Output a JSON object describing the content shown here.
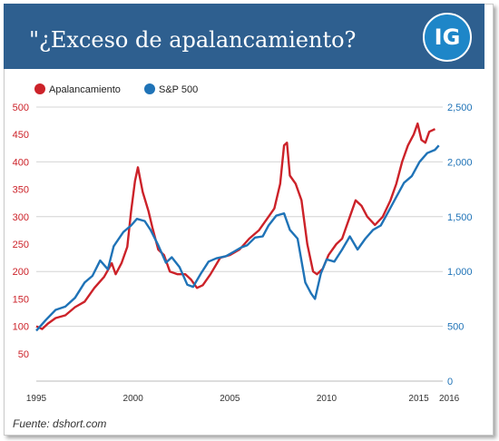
{
  "header": {
    "title": "\"¿Exceso de apalancamiento?",
    "logo_text": "IG"
  },
  "source": "Fuente: dshort.com",
  "colors": {
    "header_bg": "#2e5f8f",
    "logo_bg": "#1e86c8",
    "red_series": "#cc2229",
    "blue_series": "#1f73b7"
  },
  "chart_data": {
    "type": "line",
    "title": "\"¿Exceso de apalancamiento?",
    "legend_position": "top-left",
    "grid": true,
    "x_ticks": [
      "1995",
      "2000",
      "2005",
      "2010",
      "2015",
      "2016"
    ],
    "x_tick_values": [
      1995,
      2000,
      2005,
      2010,
      2015,
      2016
    ],
    "xlim": [
      1995,
      2016
    ],
    "y_left": {
      "ticks": [
        "50",
        "100",
        "150",
        "200",
        "250",
        "300",
        "350",
        "400",
        "450",
        "500"
      ],
      "tick_values": [
        50,
        100,
        150,
        200,
        250,
        300,
        350,
        400,
        450,
        500
      ],
      "lim": [
        0,
        500
      ]
    },
    "y_right": {
      "ticks": [
        "0",
        "500",
        "1,000",
        "1,500",
        "2,000",
        "2,500"
      ],
      "tick_values": [
        0,
        500,
        1000,
        1500,
        2000,
        2500
      ],
      "lim": [
        0,
        2500
      ]
    },
    "series": [
      {
        "name": "Apalancamiento",
        "axis": "left",
        "color": "#cc2229",
        "points": [
          [
            1995.0,
            100
          ],
          [
            1995.3,
            95
          ],
          [
            1995.6,
            105
          ],
          [
            1996.0,
            115
          ],
          [
            1996.5,
            120
          ],
          [
            1997.0,
            135
          ],
          [
            1997.5,
            145
          ],
          [
            1998.0,
            170
          ],
          [
            1998.5,
            190
          ],
          [
            1998.9,
            215
          ],
          [
            1999.1,
            195
          ],
          [
            1999.4,
            215
          ],
          [
            1999.7,
            245
          ],
          [
            1999.9,
            310
          ],
          [
            2000.1,
            365
          ],
          [
            2000.25,
            390
          ],
          [
            2000.5,
            345
          ],
          [
            2000.8,
            310
          ],
          [
            2001.0,
            280
          ],
          [
            2001.3,
            240
          ],
          [
            2001.6,
            230
          ],
          [
            2001.9,
            200
          ],
          [
            2002.3,
            195
          ],
          [
            2002.7,
            195
          ],
          [
            2003.0,
            185
          ],
          [
            2003.3,
            170
          ],
          [
            2003.6,
            175
          ],
          [
            2004.0,
            195
          ],
          [
            2004.5,
            225
          ],
          [
            2005.0,
            230
          ],
          [
            2005.5,
            240
          ],
          [
            2006.0,
            260
          ],
          [
            2006.5,
            275
          ],
          [
            2007.0,
            300
          ],
          [
            2007.3,
            315
          ],
          [
            2007.6,
            360
          ],
          [
            2007.8,
            430
          ],
          [
            2007.95,
            435
          ],
          [
            2008.1,
            375
          ],
          [
            2008.4,
            360
          ],
          [
            2008.7,
            330
          ],
          [
            2009.0,
            250
          ],
          [
            2009.3,
            200
          ],
          [
            2009.5,
            195
          ],
          [
            2009.8,
            205
          ],
          [
            2010.1,
            230
          ],
          [
            2010.5,
            250
          ],
          [
            2010.8,
            260
          ],
          [
            2011.2,
            300
          ],
          [
            2011.5,
            330
          ],
          [
            2011.8,
            320
          ],
          [
            2012.1,
            300
          ],
          [
            2012.5,
            285
          ],
          [
            2012.9,
            300
          ],
          [
            2013.3,
            330
          ],
          [
            2013.6,
            360
          ],
          [
            2013.9,
            400
          ],
          [
            2014.2,
            430
          ],
          [
            2014.5,
            450
          ],
          [
            2014.7,
            470
          ],
          [
            2014.9,
            440
          ],
          [
            2015.1,
            435
          ],
          [
            2015.3,
            455
          ],
          [
            2015.6,
            460
          ]
        ]
      },
      {
        "name": "S&P 500",
        "axis": "right",
        "color": "#1f73b7",
        "points": [
          [
            1995.0,
            460
          ],
          [
            1995.5,
            560
          ],
          [
            1996.0,
            650
          ],
          [
            1996.5,
            680
          ],
          [
            1997.0,
            760
          ],
          [
            1997.5,
            900
          ],
          [
            1997.9,
            960
          ],
          [
            1998.3,
            1100
          ],
          [
            1998.7,
            1020
          ],
          [
            1999.0,
            1230
          ],
          [
            1999.5,
            1360
          ],
          [
            1999.9,
            1420
          ],
          [
            2000.2,
            1480
          ],
          [
            2000.6,
            1460
          ],
          [
            2000.9,
            1380
          ],
          [
            2001.3,
            1240
          ],
          [
            2001.7,
            1080
          ],
          [
            2002.0,
            1130
          ],
          [
            2002.4,
            1040
          ],
          [
            2002.8,
            880
          ],
          [
            2003.1,
            860
          ],
          [
            2003.5,
            980
          ],
          [
            2003.9,
            1090
          ],
          [
            2004.3,
            1120
          ],
          [
            2004.8,
            1140
          ],
          [
            2005.2,
            1180
          ],
          [
            2005.6,
            1220
          ],
          [
            2005.9,
            1240
          ],
          [
            2006.3,
            1310
          ],
          [
            2006.7,
            1320
          ],
          [
            2007.0,
            1420
          ],
          [
            2007.4,
            1510
          ],
          [
            2007.8,
            1530
          ],
          [
            2008.1,
            1380
          ],
          [
            2008.5,
            1300
          ],
          [
            2008.9,
            900
          ],
          [
            2009.2,
            800
          ],
          [
            2009.4,
            750
          ],
          [
            2009.7,
            980
          ],
          [
            2010.0,
            1110
          ],
          [
            2010.4,
            1090
          ],
          [
            2010.8,
            1200
          ],
          [
            2011.2,
            1320
          ],
          [
            2011.6,
            1200
          ],
          [
            2012.0,
            1300
          ],
          [
            2012.4,
            1380
          ],
          [
            2012.8,
            1420
          ],
          [
            2013.2,
            1550
          ],
          [
            2013.6,
            1680
          ],
          [
            2014.0,
            1810
          ],
          [
            2014.4,
            1870
          ],
          [
            2014.8,
            2000
          ],
          [
            2015.2,
            2080
          ],
          [
            2015.6,
            2110
          ],
          [
            2015.8,
            2150
          ]
        ]
      }
    ]
  }
}
